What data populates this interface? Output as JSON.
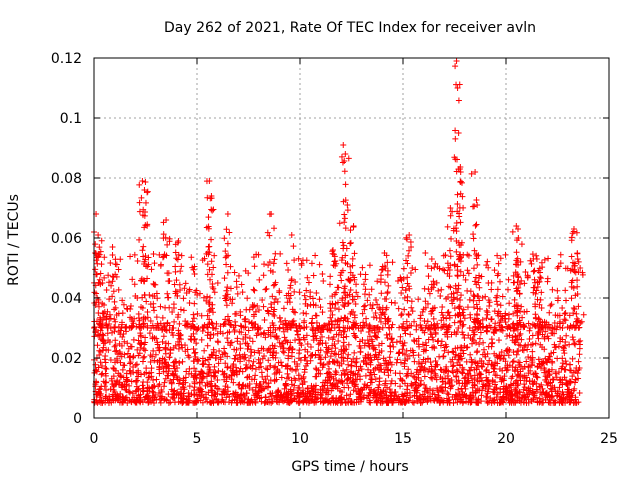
{
  "chart_data": {
    "type": "scatter",
    "title": "Day 262 of 2021, Rate Of TEC Index for receiver avln",
    "xlabel": "GPS time / hours",
    "ylabel": "ROTI / TECUs",
    "xlim": [
      0,
      25
    ],
    "ylim": [
      0,
      0.12
    ],
    "x_ticks": [
      "0",
      "5",
      "10",
      "15",
      "20",
      "25"
    ],
    "y_ticks": [
      "0",
      "0.02",
      "0.04",
      "0.06",
      "0.08",
      "0.1",
      "0.12"
    ],
    "grid": true,
    "marker": "plus",
    "color": "#ff0000",
    "x_range_of_data": [
      0,
      23.6
    ],
    "baseline_range": [
      0.005,
      0.03
    ],
    "peaks": [
      {
        "x": 0.1,
        "y": 0.068
      },
      {
        "x": 0.2,
        "y": 0.061
      },
      {
        "x": 0.9,
        "y": 0.057
      },
      {
        "x": 2.35,
        "y": 0.079
      },
      {
        "x": 2.45,
        "y": 0.076
      },
      {
        "x": 2.5,
        "y": 0.054
      },
      {
        "x": 3.5,
        "y": 0.066
      },
      {
        "x": 4.1,
        "y": 0.059
      },
      {
        "x": 5.6,
        "y": 0.079
      },
      {
        "x": 5.7,
        "y": 0.074
      },
      {
        "x": 6.5,
        "y": 0.068
      },
      {
        "x": 8.6,
        "y": 0.068
      },
      {
        "x": 9.6,
        "y": 0.061
      },
      {
        "x": 11.6,
        "y": 0.056
      },
      {
        "x": 12.1,
        "y": 0.091
      },
      {
        "x": 12.2,
        "y": 0.088
      },
      {
        "x": 12.3,
        "y": 0.071
      },
      {
        "x": 12.6,
        "y": 0.064
      },
      {
        "x": 14.1,
        "y": 0.055
      },
      {
        "x": 15.3,
        "y": 0.061
      },
      {
        "x": 16.4,
        "y": 0.053
      },
      {
        "x": 17.3,
        "y": 0.07
      },
      {
        "x": 17.6,
        "y": 0.119
      },
      {
        "x": 17.65,
        "y": 0.11
      },
      {
        "x": 17.7,
        "y": 0.095
      },
      {
        "x": 17.8,
        "y": 0.082
      },
      {
        "x": 18.5,
        "y": 0.082
      },
      {
        "x": 18.6,
        "y": 0.071
      },
      {
        "x": 20.5,
        "y": 0.064
      },
      {
        "x": 20.6,
        "y": 0.06
      },
      {
        "x": 21.5,
        "y": 0.053
      },
      {
        "x": 23.3,
        "y": 0.063
      },
      {
        "x": 23.6,
        "y": 0.05
      }
    ]
  }
}
